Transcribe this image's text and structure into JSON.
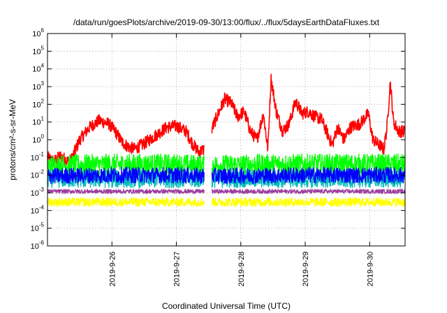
{
  "chart_data": {
    "type": "line",
    "title": "/data/run/goesPlots/archive/2019-09-30/13:00/flux/../flux/5daysEarthDataFluxes.txt",
    "xlabel": "Coordinated Universal Time (UTC)",
    "ylabel": "protons/cm²-s-sr-MeV",
    "y_scale": "log",
    "ylim": [
      1e-06,
      1000000.0
    ],
    "xlim": [
      0,
      5.55
    ],
    "x_ticks": [
      {
        "label": "2019-9-26",
        "x": 1.0
      },
      {
        "label": "2019-9-27",
        "x": 2.0
      },
      {
        "label": "2019-9-28",
        "x": 3.0
      },
      {
        "label": "2019-9-29",
        "x": 4.0
      },
      {
        "label": "2019-9-30",
        "x": 5.0
      }
    ],
    "y_tick_labels": [
      {
        "base": "10",
        "exp": "-6"
      },
      {
        "base": "10",
        "exp": "-5"
      },
      {
        "base": "10",
        "exp": "-4"
      },
      {
        "base": "10",
        "exp": "-3"
      },
      {
        "base": "10",
        "exp": "-2"
      },
      {
        "base": "10",
        "exp": "-1"
      },
      {
        "base": "10",
        "exp": "0"
      },
      {
        "base": "10",
        "exp": "1"
      },
      {
        "base": "10",
        "exp": "2"
      },
      {
        "base": "10",
        "exp": "3"
      },
      {
        "base": "10",
        "exp": "4"
      },
      {
        "base": "10",
        "exp": "5"
      },
      {
        "base": "10",
        "exp": "6"
      }
    ],
    "grid": true,
    "legend": "none",
    "gaps": [
      [
        2.43,
        2.55
      ]
    ],
    "series": [
      {
        "color": "#ff0000",
        "anchors": [
          [
            0.0,
            0.1
          ],
          [
            0.1,
            0.06
          ],
          [
            0.2,
            0.12
          ],
          [
            0.35,
            0.05
          ],
          [
            0.5,
            1
          ],
          [
            0.65,
            5
          ],
          [
            0.8,
            12
          ],
          [
            0.95,
            8
          ],
          [
            1.05,
            3
          ],
          [
            1.15,
            0.8
          ],
          [
            1.25,
            0.4
          ],
          [
            1.35,
            0.3
          ],
          [
            1.5,
            0.6
          ],
          [
            1.7,
            2
          ],
          [
            1.85,
            5
          ],
          [
            2.0,
            6
          ],
          [
            2.15,
            3
          ],
          [
            2.25,
            0.6
          ],
          [
            2.35,
            0.2
          ],
          [
            2.43,
            0.3
          ],
          [
            2.55,
            4
          ],
          [
            2.65,
            30
          ],
          [
            2.75,
            200
          ],
          [
            2.85,
            120
          ],
          [
            2.95,
            20
          ],
          [
            3.05,
            40
          ],
          [
            3.15,
            3
          ],
          [
            3.25,
            1
          ],
          [
            3.35,
            30
          ],
          [
            3.42,
            0.3
          ],
          [
            3.47,
            3000
          ],
          [
            3.55,
            40
          ],
          [
            3.65,
            3
          ],
          [
            3.75,
            8
          ],
          [
            3.85,
            150
          ],
          [
            3.95,
            30
          ],
          [
            4.05,
            40
          ],
          [
            4.15,
            20
          ],
          [
            4.25,
            15
          ],
          [
            4.35,
            2
          ],
          [
            4.42,
            0.5
          ],
          [
            4.5,
            5
          ],
          [
            4.6,
            1
          ],
          [
            4.7,
            5
          ],
          [
            4.85,
            8
          ],
          [
            4.98,
            30
          ],
          [
            5.05,
            1
          ],
          [
            5.15,
            0.5
          ],
          [
            5.22,
            0.3
          ],
          [
            5.27,
            5
          ],
          [
            5.32,
            2000
          ],
          [
            5.37,
            10
          ],
          [
            5.45,
            3
          ],
          [
            5.55,
            3
          ]
        ],
        "noise": 0.35
      },
      {
        "color": "#00ff00",
        "anchors": [
          [
            0.0,
            0.035
          ],
          [
            1.0,
            0.04
          ],
          [
            1.55,
            0.04
          ],
          [
            2.0,
            0.04
          ],
          [
            2.43,
            0.035
          ],
          [
            2.55,
            0.035
          ],
          [
            3.5,
            0.04
          ],
          [
            4.5,
            0.04
          ],
          [
            5.55,
            0.04
          ]
        ],
        "noise": 0.6
      },
      {
        "color": "#00bbbb",
        "anchors": [
          [
            0.0,
            0.006
          ],
          [
            1.0,
            0.006
          ],
          [
            2.0,
            0.006
          ],
          [
            2.43,
            0.006
          ],
          [
            2.55,
            0.006
          ],
          [
            4.0,
            0.006
          ],
          [
            5.55,
            0.006
          ]
        ],
        "noise": 0.5
      },
      {
        "color": "#0000ff",
        "anchors": [
          [
            0.0,
            0.009
          ],
          [
            1.0,
            0.01
          ],
          [
            2.0,
            0.01
          ],
          [
            2.43,
            0.009
          ],
          [
            2.55,
            0.009
          ],
          [
            4.0,
            0.01
          ],
          [
            5.55,
            0.01
          ]
        ],
        "noise": 0.45
      },
      {
        "color": "#9e3fa0",
        "anchors": [
          [
            0.0,
            0.0012
          ],
          [
            2.43,
            0.0012
          ],
          [
            2.55,
            0.0012
          ],
          [
            5.55,
            0.0012
          ]
        ],
        "noise": 0.12
      },
      {
        "color": "#ffff00",
        "anchors": [
          [
            0.0,
            0.0003
          ],
          [
            2.43,
            0.0003
          ],
          [
            2.55,
            0.0003
          ],
          [
            5.55,
            0.0003
          ]
        ],
        "noise": 0.25
      }
    ]
  }
}
